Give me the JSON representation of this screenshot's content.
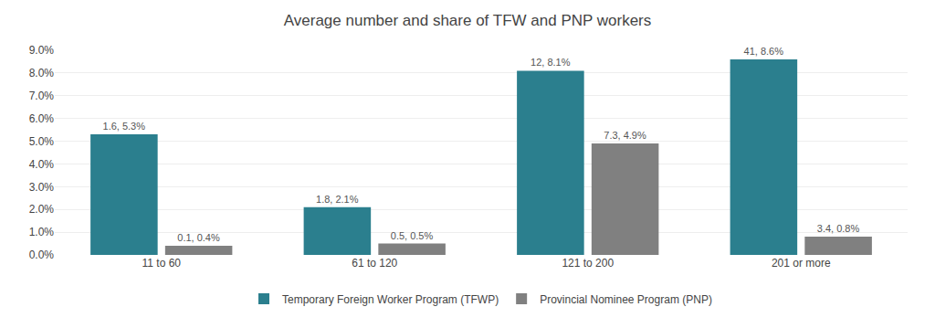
{
  "chart_data": {
    "type": "bar",
    "title": "Average number and share of TFW and PNP workers",
    "categories": [
      "11 to 60",
      "61 to 120",
      "121 to 200",
      "201 or more"
    ],
    "series": [
      {
        "name": "Temporary Foreign Worker Program (TFWP)",
        "color": "#2b7f8e",
        "values": [
          5.3,
          2.1,
          8.1,
          8.6
        ],
        "value_labels": [
          "1.6, 5.3%",
          "1.8, 2.1%",
          "12, 8.1%",
          "41, 8.6%"
        ]
      },
      {
        "name": "Provincial Nominee Program (PNP)",
        "color": "#808080",
        "values": [
          0.4,
          0.5,
          4.9,
          0.8
        ],
        "value_labels": [
          "0.1, 0.4%",
          "0.5, 0.5%",
          "7.3, 4.9%",
          "3.4, 0.8%"
        ]
      }
    ],
    "ylim": [
      0,
      9.0
    ],
    "yticks": [
      {
        "value": 0.0,
        "label": "0.0%"
      },
      {
        "value": 1.0,
        "label": "1.0%"
      },
      {
        "value": 2.0,
        "label": "2.0%"
      },
      {
        "value": 3.0,
        "label": "3.0%"
      },
      {
        "value": 4.0,
        "label": "4.0%"
      },
      {
        "value": 5.0,
        "label": "5.0%"
      },
      {
        "value": 6.0,
        "label": "6.0%"
      },
      {
        "value": 7.0,
        "label": "7.0%"
      },
      {
        "value": 8.0,
        "label": "8.0%"
      },
      {
        "value": 9.0,
        "label": "9.0%"
      }
    ],
    "grid": true,
    "legend": "bottom",
    "data_labels": true
  }
}
